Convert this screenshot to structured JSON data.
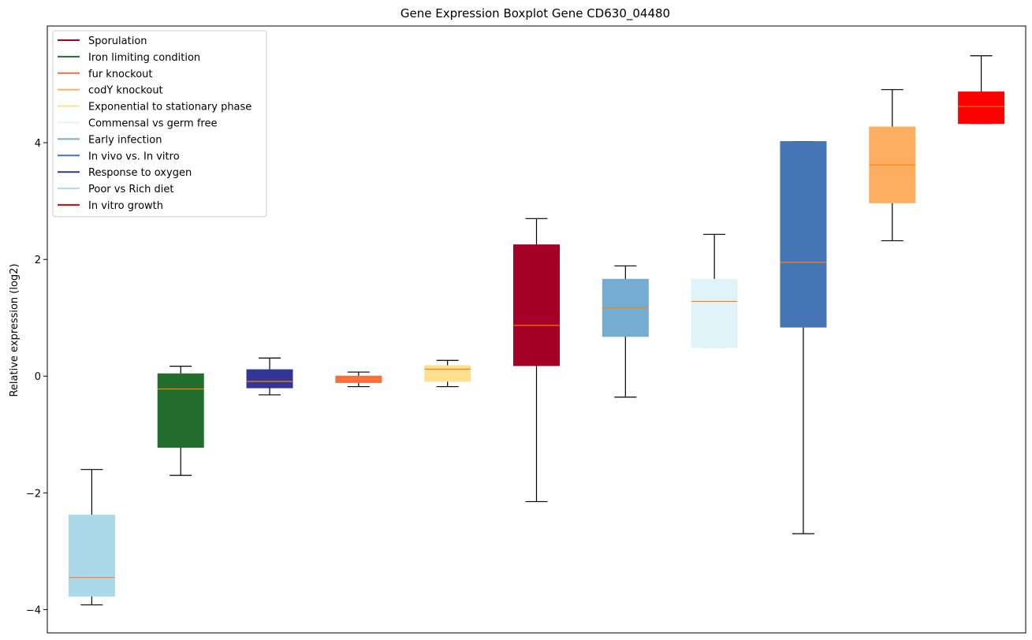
{
  "chart_data": {
    "type": "box",
    "title": "Gene Expression Boxplot Gene CD630_04480",
    "xlabel": "",
    "ylabel": "Relative expression (log2)",
    "ylim": [
      -4.4,
      6.0
    ],
    "yticks": [
      -4,
      -2,
      0,
      2,
      4
    ],
    "ytick_labels": [
      "−4",
      "−2",
      "0",
      "2",
      "4"
    ],
    "grid": false,
    "legend_position": "top-left",
    "median_color": "#ff7f0e",
    "legend": [
      {
        "label": "Sporulation",
        "color": "#a50026"
      },
      {
        "label": "Iron limiting condition",
        "color": "#236e2e"
      },
      {
        "label": "fur knockout",
        "color": "#f46d43"
      },
      {
        "label": "codY knockout",
        "color": "#fdae61"
      },
      {
        "label": "Exponential to stationary phase",
        "color": "#fee090"
      },
      {
        "label": "Commensal vs germ free",
        "color": "#e0f3f8"
      },
      {
        "label": "Early infection",
        "color": "#74add1"
      },
      {
        "label": "In vivo vs. In vitro",
        "color": "#4575b4"
      },
      {
        "label": "Response to oxygen",
        "color": "#313695"
      },
      {
        "label": "Poor vs Rich diet",
        "color": "#abd9e9"
      },
      {
        "label": "In vitro growth",
        "color": "#ff0000"
      }
    ],
    "boxes": [
      {
        "group": "Poor vs Rich diet",
        "color": "#abd9e9",
        "whisker_low": -3.92,
        "q1": -3.77,
        "median": -3.45,
        "q3": -2.38,
        "whisker_high": -1.6
      },
      {
        "group": "Iron limiting condition",
        "color": "#236e2e",
        "whisker_low": -1.7,
        "q1": -1.22,
        "median": -0.22,
        "q3": 0.04,
        "whisker_high": 0.17
      },
      {
        "group": "Response to oxygen",
        "color": "#313695",
        "whisker_low": -0.32,
        "q1": -0.2,
        "median": -0.09,
        "q3": 0.11,
        "whisker_high": 0.31
      },
      {
        "group": "fur knockout",
        "color": "#f46d43",
        "whisker_low": -0.18,
        "q1": -0.11,
        "median": -0.05,
        "q3": 0.0,
        "whisker_high": 0.07
      },
      {
        "group": "Exponential to stationary phase",
        "color": "#fee090",
        "whisker_low": -0.18,
        "q1": -0.09,
        "median": 0.12,
        "q3": 0.18,
        "whisker_high": 0.27
      },
      {
        "group": "Sporulation",
        "color": "#a50026",
        "whisker_low": -2.15,
        "q1": 0.18,
        "median": 0.87,
        "q3": 2.25,
        "whisker_high": 2.7
      },
      {
        "group": "Early infection",
        "color": "#74add1",
        "whisker_low": -0.36,
        "q1": 0.68,
        "median": 1.17,
        "q3": 1.66,
        "whisker_high": 1.89
      },
      {
        "group": "Commensal vs germ free",
        "color": "#e0f3f8",
        "whisker_low": 0.49,
        "q1": 0.49,
        "median": 1.28,
        "q3": 1.66,
        "whisker_high": 2.43
      },
      {
        "group": "In vivo vs. In vitro",
        "color": "#4575b4",
        "whisker_low": -2.7,
        "q1": 0.84,
        "median": 1.95,
        "q3": 4.02,
        "whisker_high": 4.02
      },
      {
        "group": "codY knockout",
        "color": "#fdae61",
        "whisker_low": 2.32,
        "q1": 2.97,
        "median": 3.62,
        "q3": 4.27,
        "whisker_high": 4.91
      },
      {
        "group": "In vitro growth",
        "color": "#ff0000",
        "whisker_low": 4.33,
        "q1": 4.33,
        "median": 4.62,
        "q3": 4.87,
        "whisker_high": 5.49
      }
    ]
  }
}
